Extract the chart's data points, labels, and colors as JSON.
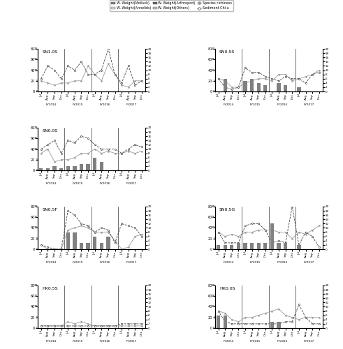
{
  "legend_labels": {
    "mollusk": "W. Weight(Mollusk)",
    "annelids": "W. Weight(Annelids)",
    "arthropod": "W. Weight(Arthropod)",
    "others": "W. Weight(Others)",
    "species": "Species richiness",
    "chl": "Sediment Chl-a"
  },
  "fy_labels": [
    "FY2014",
    "FY2015",
    "FY2016",
    "FY2017"
  ],
  "colors": {
    "mollusk": "#808080",
    "annelids": "#d8d8d8",
    "arthropod": "#606060",
    "others": "#c0c0c0",
    "species_line": "#999999",
    "chl_line": "#444444"
  },
  "grid": [
    [
      "SN1.0S",
      "SN0.5S"
    ],
    [
      "SN0.0S",
      null
    ],
    [
      "SN0.5F",
      "SN0.5G"
    ],
    [
      "HK0.5S",
      "HK0.0S"
    ]
  ],
  "stations": {
    "SN1.0S": {
      "mollusk": [
        0,
        0,
        0,
        0,
        0,
        0,
        0,
        0,
        0,
        0,
        0,
        0,
        0,
        0,
        0,
        0
      ],
      "annelids": [
        0,
        0,
        0,
        0,
        0,
        0,
        0,
        0,
        0,
        0,
        0,
        0,
        0,
        0,
        0,
        0
      ],
      "arthropod": [
        0,
        0,
        0,
        0,
        0,
        0,
        0,
        0,
        0,
        0,
        0,
        0,
        0,
        0,
        0,
        0
      ],
      "others": [
        0,
        0,
        0,
        0,
        0,
        0,
        0,
        0,
        0,
        0,
        0,
        0,
        0,
        0,
        0,
        0
      ],
      "species": [
        5,
        4,
        3,
        4,
        4,
        5,
        5,
        12,
        8,
        5,
        13,
        8,
        3,
        2,
        5,
        5
      ],
      "chl": [
        6,
        12,
        10,
        6,
        12,
        10,
        14,
        8,
        8,
        10,
        20,
        8,
        4,
        12,
        3,
        5
      ]
    },
    "SN0.5S": {
      "mollusk": [
        0,
        6,
        0,
        0,
        5,
        6,
        4,
        3,
        0,
        4,
        3,
        0,
        2,
        0,
        0,
        0
      ],
      "annelids": [
        0,
        0,
        0,
        0,
        0,
        0,
        0,
        0,
        0,
        0,
        0,
        0,
        0,
        0,
        0,
        0
      ],
      "arthropod": [
        0,
        0,
        0,
        0,
        0,
        0,
        0,
        0,
        0,
        0,
        0,
        0,
        0,
        0,
        0,
        0
      ],
      "others": [
        0,
        0,
        0,
        0,
        0,
        0,
        0,
        0,
        0,
        0,
        0,
        0,
        0,
        0,
        0,
        0
      ],
      "species": [
        6,
        5,
        2,
        2,
        4,
        5,
        6,
        6,
        5,
        8,
        8,
        5,
        6,
        7,
        8,
        10
      ],
      "chl": [
        6,
        2,
        1,
        2,
        11,
        9,
        9,
        7,
        6,
        5,
        7,
        6,
        6,
        4,
        8,
        9
      ]
    },
    "SN0.0S": {
      "mollusk": [
        1,
        1,
        2,
        1,
        2,
        2,
        3,
        3,
        6,
        4,
        0,
        0,
        0,
        0,
        0,
        0
      ],
      "annelids": [
        0,
        0,
        0,
        0,
        0,
        0,
        0,
        0,
        0,
        0,
        0,
        0,
        0,
        0,
        0,
        0
      ],
      "arthropod": [
        0,
        0,
        0,
        0,
        0,
        0,
        0,
        0,
        0,
        0,
        0,
        0,
        0,
        0,
        0,
        0
      ],
      "others": [
        0,
        0,
        0,
        0,
        0,
        0,
        0,
        0,
        0,
        0,
        0,
        0,
        0,
        0,
        0,
        0
      ],
      "species": [
        8,
        10,
        4,
        5,
        5,
        6,
        8,
        8,
        10,
        8,
        9,
        8,
        8,
        9,
        8,
        9
      ],
      "chl": [
        10,
        12,
        14,
        8,
        14,
        13,
        16,
        15,
        12,
        10,
        10,
        10,
        8,
        10,
        12,
        11
      ]
    },
    "SN0.5G": {
      "mollusk": [
        2,
        2,
        2,
        3,
        3,
        3,
        3,
        3,
        12,
        3,
        3,
        0,
        2,
        0,
        0,
        0
      ],
      "annelids": [
        0,
        0,
        0,
        0,
        0,
        0,
        0,
        0,
        0,
        0,
        0,
        0,
        0,
        0,
        0,
        0
      ],
      "arthropod": [
        0,
        0,
        0,
        0,
        0,
        0,
        0,
        0,
        0,
        0,
        0,
        0,
        0,
        0,
        0,
        0
      ],
      "others": [
        0,
        0,
        0,
        0,
        0,
        0,
        0,
        0,
        0,
        0,
        0,
        0,
        0,
        0,
        0,
        0
      ],
      "species": [
        8,
        6,
        7,
        6,
        8,
        8,
        9,
        9,
        9,
        8,
        8,
        5,
        8,
        7,
        9,
        11
      ],
      "chl": [
        8,
        3,
        3,
        3,
        11,
        12,
        12,
        9,
        3,
        4,
        3,
        20,
        2,
        8,
        6,
        1
      ]
    },
    "SN0.5F": {
      "mollusk": [
        0,
        0,
        0,
        0,
        8,
        8,
        3,
        3,
        6,
        3,
        6,
        0,
        0,
        0,
        0,
        0
      ],
      "annelids": [
        0,
        0,
        0,
        0,
        0,
        0,
        0,
        0,
        0,
        0,
        0,
        0,
        0,
        0,
        0,
        0
      ],
      "arthropod": [
        0,
        0,
        0,
        0,
        0,
        0,
        0,
        0,
        0,
        0,
        0,
        0,
        0,
        0,
        0,
        0
      ],
      "others": [
        0,
        0,
        0,
        0,
        0,
        0,
        0,
        0,
        0,
        0,
        0,
        0,
        0,
        0,
        0,
        0
      ],
      "species": [
        2,
        0,
        0,
        0,
        9,
        10,
        11,
        10,
        8,
        8,
        8,
        4,
        0,
        1,
        6,
        7
      ],
      "chl": [
        2,
        1,
        0,
        0,
        18,
        16,
        12,
        11,
        8,
        10,
        9,
        3,
        12,
        11,
        10,
        6
      ]
    },
    "HK0.5S": {
      "mollusk": [
        0,
        0,
        0,
        0,
        0,
        0,
        0,
        0,
        0,
        0,
        0,
        0,
        0,
        0,
        0,
        0
      ],
      "annelids": [
        0,
        0,
        0,
        0,
        0,
        0,
        0,
        0,
        0,
        0,
        0,
        0,
        0,
        0,
        0,
        0
      ],
      "arthropod": [
        0,
        0,
        0,
        0,
        0,
        0,
        0,
        0,
        0,
        0,
        0,
        0,
        0,
        0,
        0,
        0
      ],
      "others": [
        0,
        0,
        0,
        0,
        0,
        0,
        0,
        0,
        0,
        0,
        0,
        0,
        0,
        0,
        0,
        0
      ],
      "species": [
        1,
        1,
        1,
        1,
        3,
        2,
        3,
        2,
        1,
        1,
        1,
        1,
        1,
        1,
        1,
        1
      ],
      "chl": [
        1,
        1,
        1,
        1,
        1,
        1,
        1,
        1,
        1,
        1,
        1,
        1,
        2,
        2,
        2,
        2
      ]
    },
    "HK0.0S": {
      "mollusk": [
        6,
        6,
        0,
        0,
        0,
        0,
        0,
        0,
        3,
        3,
        0,
        0,
        0,
        0,
        0,
        0
      ],
      "annelids": [
        0,
        0,
        0,
        0,
        0,
        0,
        0,
        0,
        0,
        0,
        0,
        0,
        0,
        0,
        0,
        0
      ],
      "arthropod": [
        0,
        0,
        0,
        0,
        0,
        0,
        0,
        0,
        0,
        0,
        0,
        0,
        0,
        0,
        0,
        0
      ],
      "others": [
        0,
        0,
        0,
        0,
        0,
        0,
        0,
        0,
        0,
        0,
        0,
        0,
        0,
        0,
        0,
        0
      ],
      "species": [
        8,
        7,
        4,
        3,
        5,
        5,
        6,
        7,
        8,
        9,
        6,
        5,
        4,
        5,
        5,
        5
      ],
      "chl": [
        8,
        3,
        2,
        2,
        2,
        2,
        2,
        2,
        2,
        2,
        3,
        3,
        11,
        5,
        2,
        2
      ]
    }
  }
}
